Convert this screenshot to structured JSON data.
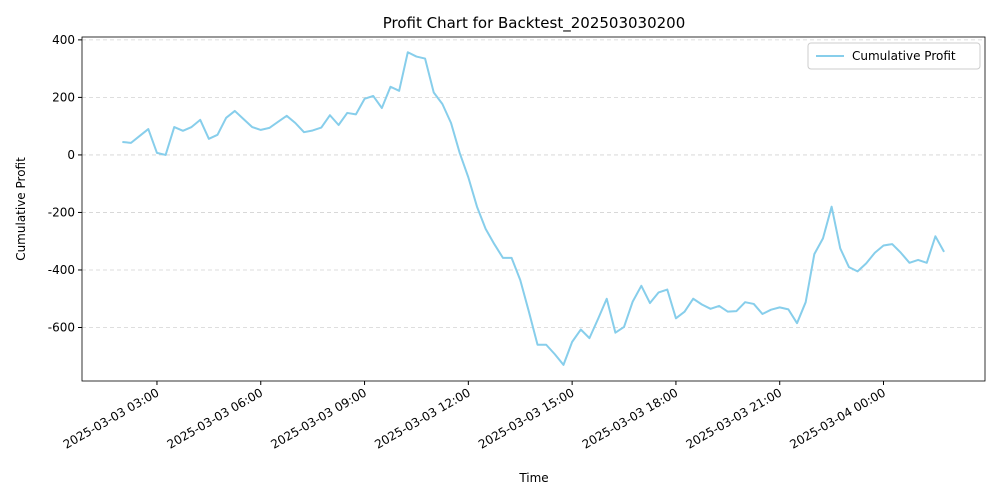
{
  "chart_data": {
    "type": "line",
    "title": "Profit Chart for Backtest_202503030200",
    "xlabel": "Time",
    "ylabel": "Cumulative Profit",
    "x": [
      "2025-03-03 02:00",
      "2025-03-03 02:15",
      "2025-03-03 02:30",
      "2025-03-03 02:45",
      "2025-03-03 03:00",
      "2025-03-03 03:15",
      "2025-03-03 03:30",
      "2025-03-03 03:45",
      "2025-03-03 04:00",
      "2025-03-03 04:15",
      "2025-03-03 04:30",
      "2025-03-03 04:45",
      "2025-03-03 05:00",
      "2025-03-03 05:15",
      "2025-03-03 05:30",
      "2025-03-03 05:45",
      "2025-03-03 06:00",
      "2025-03-03 06:15",
      "2025-03-03 06:30",
      "2025-03-03 06:45",
      "2025-03-03 07:00",
      "2025-03-03 07:15",
      "2025-03-03 07:30",
      "2025-03-03 07:45",
      "2025-03-03 08:00",
      "2025-03-03 08:15",
      "2025-03-03 08:30",
      "2025-03-03 08:45",
      "2025-03-03 09:00",
      "2025-03-03 09:15",
      "2025-03-03 09:30",
      "2025-03-03 09:45",
      "2025-03-03 10:00",
      "2025-03-03 10:15",
      "2025-03-03 10:30",
      "2025-03-03 10:45",
      "2025-03-03 11:00",
      "2025-03-03 11:15",
      "2025-03-03 11:30",
      "2025-03-03 11:45",
      "2025-03-03 12:00",
      "2025-03-03 12:15",
      "2025-03-03 12:30",
      "2025-03-03 12:45",
      "2025-03-03 13:00",
      "2025-03-03 13:15",
      "2025-03-03 13:30",
      "2025-03-03 13:45",
      "2025-03-03 14:00",
      "2025-03-03 14:15",
      "2025-03-03 14:30",
      "2025-03-03 14:45",
      "2025-03-03 15:00",
      "2025-03-03 15:15",
      "2025-03-03 15:30",
      "2025-03-03 15:45",
      "2025-03-03 16:00",
      "2025-03-03 16:15",
      "2025-03-03 16:30",
      "2025-03-03 16:45",
      "2025-03-03 17:00",
      "2025-03-03 17:15",
      "2025-03-03 17:30",
      "2025-03-03 17:45",
      "2025-03-03 18:00",
      "2025-03-03 18:15",
      "2025-03-03 18:30",
      "2025-03-03 18:45",
      "2025-03-03 19:00",
      "2025-03-03 19:15",
      "2025-03-03 19:30",
      "2025-03-03 19:45",
      "2025-03-03 20:00",
      "2025-03-03 20:15",
      "2025-03-03 20:30",
      "2025-03-03 20:45",
      "2025-03-03 21:00",
      "2025-03-03 21:15",
      "2025-03-03 21:30",
      "2025-03-03 21:45",
      "2025-03-03 22:00",
      "2025-03-03 22:15",
      "2025-03-03 22:30",
      "2025-03-03 22:45",
      "2025-03-03 23:00",
      "2025-03-03 23:15",
      "2025-03-03 23:30",
      "2025-03-03 23:45",
      "2025-03-04 00:00",
      "2025-03-04 00:15",
      "2025-03-04 00:30",
      "2025-03-04 00:45",
      "2025-03-04 01:00",
      "2025-03-04 01:15",
      "2025-03-04 01:30",
      "2025-03-04 01:45"
    ],
    "series": [
      {
        "name": "Cumulative Profit",
        "color": "#87ceeb",
        "values": [
          45,
          42,
          66,
          90,
          7,
          0,
          97,
          84,
          97,
          122,
          56,
          70,
          129,
          153,
          125,
          97,
          87,
          94,
          115,
          136,
          111,
          79,
          85,
          95,
          138,
          104,
          146,
          141,
          195,
          205,
          163,
          237,
          223,
          357,
          342,
          335,
          217,
          177,
          111,
          7,
          -78,
          -180,
          -257,
          -310,
          -358,
          -358,
          -435,
          -545,
          -660,
          -660,
          -693,
          -730,
          -650,
          -607,
          -637,
          -570,
          -500,
          -618,
          -598,
          -510,
          -455,
          -515,
          -478,
          -468,
          -568,
          -545,
          -500,
          -520,
          -535,
          -525,
          -545,
          -543,
          -512,
          -518,
          -553,
          -538,
          -530,
          -537,
          -585,
          -512,
          -345,
          -290,
          -180,
          -325,
          -390,
          -405,
          -377,
          -340,
          -315,
          -310,
          -340,
          -375,
          -365,
          -375,
          -283,
          -337
        ]
      }
    ],
    "xlim": [
      "2025-03-03 00:50",
      "2025-03-04 02:56"
    ],
    "xticks": [
      "2025-03-03 03:00",
      "2025-03-03 06:00",
      "2025-03-03 09:00",
      "2025-03-03 12:00",
      "2025-03-03 15:00",
      "2025-03-03 18:00",
      "2025-03-03 21:00",
      "2025-03-04 00:00"
    ],
    "ylim": [
      -786,
      410
    ],
    "yticks": [
      -600,
      -400,
      -200,
      0,
      200,
      400
    ],
    "grid": "y",
    "legend": "upper right"
  }
}
